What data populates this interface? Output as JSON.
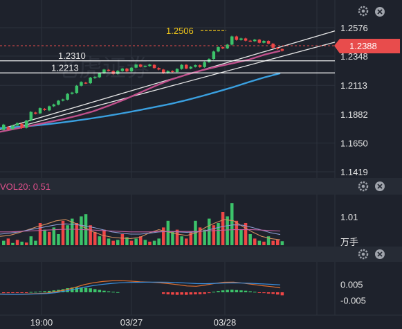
{
  "colors": {
    "background": "#1e222c",
    "panel_header": "#262b35",
    "grid": "#2c313c",
    "axis_text": "#e6e6e6",
    "up": "#3cc36a",
    "down": "#f04646",
    "ma_blue": "#3aa0e0",
    "ma_purple": "#c0508c",
    "trendline": "#e8e8e8",
    "hline": "#ffffff",
    "price_tag": "#e84c4c",
    "high_label": "#f0c61a",
    "vol_label": "#e0508c",
    "macd_dif": "#e07030",
    "macd_dea": "#3a90e0",
    "vol_ma_a": "#d49060",
    "vol_ma_b": "#8a9ad0",
    "vol_ma_c": "#c060a0"
  },
  "icons": {
    "settings": "gear-icon",
    "close": "close-icon"
  },
  "watermark": "老虎证券",
  "main_panel": {
    "y_ticks": [
      "1.2576",
      "1.2348",
      "1.2113",
      "1.1882",
      "1.1650",
      "1.1419"
    ],
    "last_price": "1.2388",
    "high_marker": "1.2506",
    "hline_labels": [
      "1.2310",
      "1.2213"
    ]
  },
  "volume_panel": {
    "label": "VOL20: 0.51",
    "y_tick": "1.01",
    "unit": "万手"
  },
  "macd_panel": {
    "y_ticks": [
      "0.005",
      "-0.005"
    ]
  },
  "x_axis": {
    "labels": [
      "19:00",
      "03/27",
      "03/28"
    ]
  },
  "chart_data": [
    {
      "type": "candlestick",
      "panel": "price",
      "y_ticks": [
        1.2576,
        1.2348,
        1.2113,
        1.1882,
        1.165,
        1.1419
      ],
      "last_price": 1.2388,
      "high_annotation": 1.2506,
      "horizontal_lines": [
        1.231,
        1.2213
      ],
      "candles": [
        [
          1.1755,
          1.1798
        ],
        [
          1.178,
          1.176
        ],
        [
          1.1762,
          1.179
        ],
        [
          1.179,
          1.181
        ],
        [
          1.1805,
          1.177
        ],
        [
          1.1772,
          1.183
        ],
        [
          1.183,
          1.19
        ],
        [
          1.1895,
          1.1885
        ],
        [
          1.1888,
          1.193
        ],
        [
          1.1925,
          1.1915
        ],
        [
          1.1912,
          1.1945
        ],
        [
          1.1945,
          1.196
        ],
        [
          1.1958,
          1.199
        ],
        [
          1.199,
          1.2
        ],
        [
          1.1998,
          1.2045
        ],
        [
          1.2045,
          1.2055
        ],
        [
          1.2052,
          1.211
        ],
        [
          1.211,
          1.214
        ],
        [
          1.2135,
          1.213
        ],
        [
          1.213,
          1.2175
        ],
        [
          1.2172,
          1.218
        ],
        [
          1.2178,
          1.221
        ],
        [
          1.221,
          1.224
        ],
        [
          1.2238,
          1.223
        ],
        [
          1.2228,
          1.2205
        ],
        [
          1.2205,
          1.223
        ],
        [
          1.2228,
          1.2248
        ],
        [
          1.2248,
          1.2225
        ],
        [
          1.2225,
          1.2255
        ],
        [
          1.2255,
          1.228
        ],
        [
          1.228,
          1.2262
        ],
        [
          1.2262,
          1.2268
        ],
        [
          1.2268,
          1.228
        ],
        [
          1.2278,
          1.2252
        ],
        [
          1.2252,
          1.224
        ],
        [
          1.224,
          1.221
        ],
        [
          1.2212,
          1.2228
        ],
        [
          1.2228,
          1.222
        ],
        [
          1.222,
          1.2245
        ],
        [
          1.2245,
          1.2278
        ],
        [
          1.2278,
          1.2248
        ],
        [
          1.2248,
          1.2262
        ],
        [
          1.2262,
          1.2275
        ],
        [
          1.2275,
          1.226
        ],
        [
          1.226,
          1.23
        ],
        [
          1.23,
          1.2325
        ],
        [
          1.2325,
          1.2385
        ],
        [
          1.2385,
          1.242
        ],
        [
          1.242,
          1.241
        ],
        [
          1.241,
          1.244
        ],
        [
          1.244,
          1.2506
        ],
        [
          1.2506,
          1.2478
        ],
        [
          1.2478,
          1.249
        ],
        [
          1.249,
          1.2472
        ],
        [
          1.2472,
          1.2468
        ],
        [
          1.2468,
          1.248
        ],
        [
          1.248,
          1.2455
        ],
        [
          1.2455,
          1.247
        ],
        [
          1.247,
          1.2448
        ],
        [
          1.2448,
          1.2415
        ],
        [
          1.2415,
          1.2405
        ],
        [
          1.2405,
          1.239
        ]
      ],
      "ma_purple": [
        1.174,
        1.1765,
        1.179,
        1.1815,
        1.184,
        1.187,
        1.1905,
        1.195,
        1.2,
        1.2055,
        1.211,
        1.216,
        1.22,
        1.2235,
        1.2265,
        1.2292,
        1.232,
        1.236,
        1.239
      ],
      "ma_blue": [
        1.177,
        1.1778,
        1.1788,
        1.18,
        1.1815,
        1.1832,
        1.185,
        1.187,
        1.1892,
        1.1915,
        1.194,
        1.1965,
        1.1995,
        1.2028,
        1.2063,
        1.21,
        1.214,
        1.2178,
        1.221
      ],
      "trendlines": [
        {
          "x": [
            0,
            1
          ],
          "y": [
            1.176,
            1.255
          ]
        },
        {
          "x": [
            0,
            1
          ],
          "y": [
            1.174,
            1.246
          ]
        }
      ],
      "x_labels": [
        "19:00",
        "03/27",
        "03/28"
      ]
    },
    {
      "type": "bar",
      "panel": "volume",
      "label": "VOL20: 0.51",
      "y_tick": 1.01,
      "unit": "万手",
      "values": [
        0.1,
        0.15,
        0.05,
        0.12,
        0.08,
        0.06,
        0.2,
        0.1,
        0.5,
        0.35,
        0.3,
        0.4,
        0.25,
        0.55,
        0.45,
        0.6,
        0.5,
        0.65,
        0.7,
        0.45,
        0.3,
        0.2,
        0.35,
        0.15,
        0.1,
        0.12,
        0.25,
        0.18,
        0.1,
        0.15,
        0.2,
        0.12,
        0.08,
        0.1,
        0.15,
        0.4,
        0.55,
        0.3,
        0.35,
        0.2,
        0.15,
        0.3,
        0.55,
        0.4,
        0.35,
        0.6,
        0.45,
        0.5,
        0.75,
        0.65,
        0.95,
        0.55,
        0.35,
        0.5,
        0.25,
        0.15,
        0.1,
        0.08,
        0.2,
        0.1,
        0.12,
        0.09
      ],
      "up": [
        true,
        false,
        true,
        false,
        true,
        false,
        true,
        true,
        false,
        true,
        false,
        true,
        true,
        false,
        true,
        true,
        false,
        true,
        true,
        false,
        false,
        true,
        false,
        true,
        false,
        true,
        false,
        true,
        false,
        true,
        false,
        true,
        false,
        true,
        true,
        false,
        true,
        true,
        false,
        true,
        false,
        false,
        true,
        false,
        true,
        true,
        false,
        true,
        false,
        true,
        true,
        false,
        true,
        false,
        true,
        false,
        true,
        false,
        true,
        false,
        false,
        true
      ],
      "ma_lines": [
        [
          0.2,
          0.22,
          0.28,
          0.35,
          0.42,
          0.48,
          0.55,
          0.58,
          0.5,
          0.4,
          0.3,
          0.22,
          0.18,
          0.16,
          0.15,
          0.18,
          0.28,
          0.35,
          0.3,
          0.25,
          0.22,
          0.28,
          0.4,
          0.5,
          0.58,
          0.55,
          0.42,
          0.3,
          0.2,
          0.15,
          0.12
        ],
        [
          0.25,
          0.27,
          0.3,
          0.34,
          0.38,
          0.42,
          0.46,
          0.48,
          0.47,
          0.44,
          0.4,
          0.35,
          0.3,
          0.27,
          0.25,
          0.25,
          0.27,
          0.3,
          0.31,
          0.3,
          0.29,
          0.3,
          0.33,
          0.38,
          0.43,
          0.46,
          0.45,
          0.4,
          0.34,
          0.28,
          0.24
        ],
        [
          0.3,
          0.3,
          0.31,
          0.32,
          0.33,
          0.34,
          0.35,
          0.36,
          0.36,
          0.35,
          0.34,
          0.33,
          0.32,
          0.31,
          0.3,
          0.3,
          0.3,
          0.31,
          0.31,
          0.31,
          0.31,
          0.31,
          0.32,
          0.33,
          0.34,
          0.35,
          0.35,
          0.35,
          0.34,
          0.33,
          0.32
        ]
      ]
    },
    {
      "type": "bar",
      "panel": "macd",
      "y_ticks": [
        0.005,
        -0.005
      ],
      "histogram": [
        -0.0005,
        -0.0005,
        -0.0004,
        -0.0004,
        -0.0003,
        -0.0002,
        0.0002,
        0.0003,
        0.0005,
        0.0007,
        0.0009,
        0.0012,
        0.0015,
        0.002,
        0.0026,
        0.003,
        0.0031,
        0.003,
        0.0028,
        0.0025,
        0.002,
        0.0015,
        0.001,
        0.0006,
        0.0003,
        0.0001,
        0,
        0,
        0,
        0,
        0,
        0,
        0,
        0,
        0,
        -0.001,
        -0.0013,
        -0.0015,
        -0.0016,
        -0.0015,
        -0.0016,
        -0.0014,
        -0.0013,
        -0.0012,
        -0.001,
        -0.0005,
        0.0003,
        0.0008,
        0.0012,
        0.0015,
        0.0016,
        0.0014,
        0.0012,
        0.001,
        0.0006,
        0.0003,
        -0.0002,
        -0.0005,
        -0.0008,
        -0.001,
        -0.0014,
        -0.0019
      ],
      "dif": [
        -0.001,
        -0.0012,
        -0.0012,
        -0.001,
        -0.0008,
        -0.0005,
        0.0005,
        0.0015,
        0.003,
        0.0048,
        0.006,
        0.0068,
        0.0072,
        0.0073,
        0.007,
        0.0066,
        0.0064,
        0.006,
        0.0055,
        0.0048,
        0.004,
        0.0038,
        0.0045,
        0.0056,
        0.0063,
        0.0064,
        0.0058,
        0.005,
        0.0042,
        0.0036,
        0.0028
      ],
      "dea": [
        -0.0012,
        -0.0013,
        -0.0013,
        -0.0012,
        -0.001,
        -0.0008,
        -0.0002,
        0.0008,
        0.002,
        0.0032,
        0.0042,
        0.005,
        0.0056,
        0.006,
        0.0062,
        0.0063,
        0.0064,
        0.0064,
        0.0063,
        0.0061,
        0.0058,
        0.0055,
        0.0054,
        0.0056,
        0.0058,
        0.0059,
        0.0058,
        0.0056,
        0.0053,
        0.005,
        0.0046
      ]
    }
  ]
}
